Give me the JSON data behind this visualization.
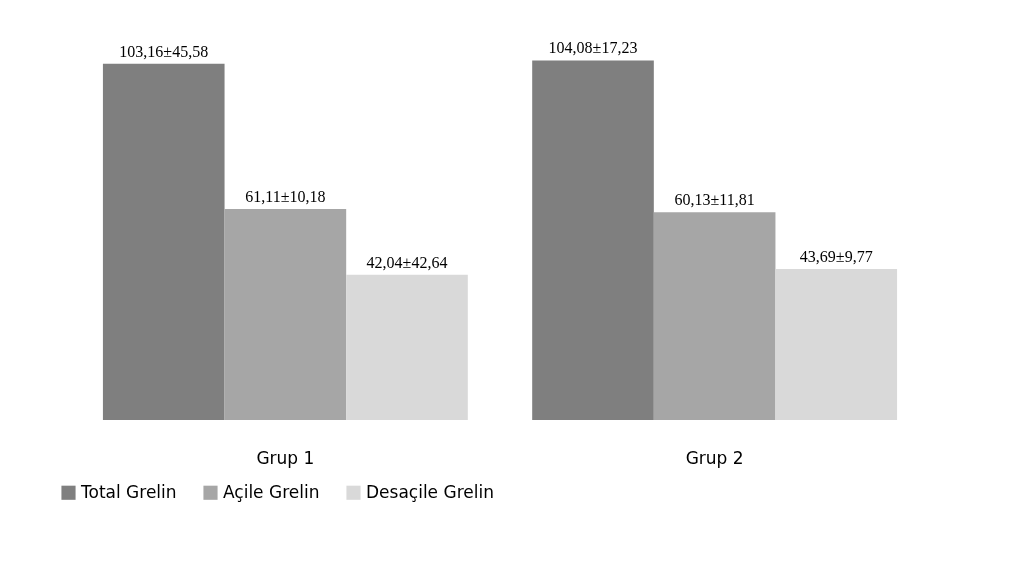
{
  "chart_data": {
    "type": "bar",
    "categories": [
      "Grup 1",
      "Grup 2"
    ],
    "series": [
      {
        "name": "Total Grelin",
        "color": "#7f7f7f",
        "values": [
          103.16,
          104.08
        ],
        "value_labels": [
          "103,16±45,58",
          "104,08±17,23"
        ]
      },
      {
        "name": "Açile Grelin",
        "color": "#a6a6a6",
        "values": [
          61.11,
          60.13
        ],
        "value_labels": [
          "61,11±10,18",
          "60,13±11,81"
        ]
      },
      {
        "name": "Desaçile Grelin",
        "color": "#d9d9d9",
        "values": [
          42.04,
          43.69
        ],
        "value_labels": [
          "42,04±42,64",
          "43,69±9,77"
        ]
      }
    ],
    "legend": "bottom",
    "grid": false
  }
}
